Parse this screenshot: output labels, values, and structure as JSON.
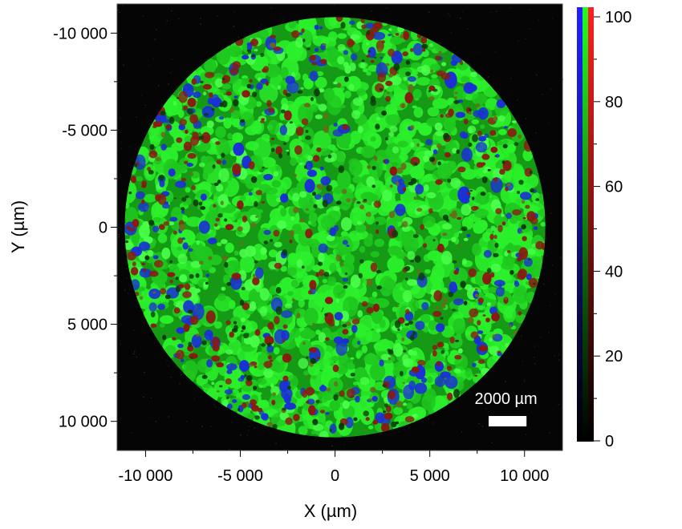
{
  "chart_data": {
    "type": "heatmap",
    "title": "",
    "xlabel": "X (µm)",
    "ylabel": "Y (µm)",
    "xlim": [
      -11500,
      12000
    ],
    "ylim": [
      -11500,
      11500
    ],
    "y_inverted": true,
    "x_ticks": [
      -10000,
      -5000,
      0,
      5000,
      10000
    ],
    "x_tick_labels": [
      "-10 000",
      "-5 000",
      "0",
      "5 000",
      "10 000"
    ],
    "y_ticks": [
      -10000,
      -5000,
      0,
      5000,
      10000
    ],
    "y_tick_labels": [
      "-10 000",
      "-5 000",
      "0",
      "5 000",
      "10 000"
    ],
    "map": {
      "shape": "circle",
      "center": [
        0,
        0
      ],
      "radius": 11100,
      "channels": [
        "red",
        "green",
        "blue"
      ],
      "dominant_channel": "green",
      "background": "#050505"
    },
    "colorbar": {
      "range": [
        0,
        100
      ],
      "ticks": [
        0,
        20,
        40,
        60,
        80,
        100
      ],
      "tick_labels": [
        "0",
        "20",
        "40",
        "60",
        "80",
        "100"
      ],
      "channel_colors": [
        "#2020ff",
        "#20ff20",
        "#ff2020"
      ]
    },
    "scale_bar": {
      "label": "2000 µm",
      "length": 2000
    }
  },
  "colors": {
    "green": "#22e622",
    "blue": "#1a2fd6",
    "red": "#8a1a10",
    "background": "#050505"
  }
}
